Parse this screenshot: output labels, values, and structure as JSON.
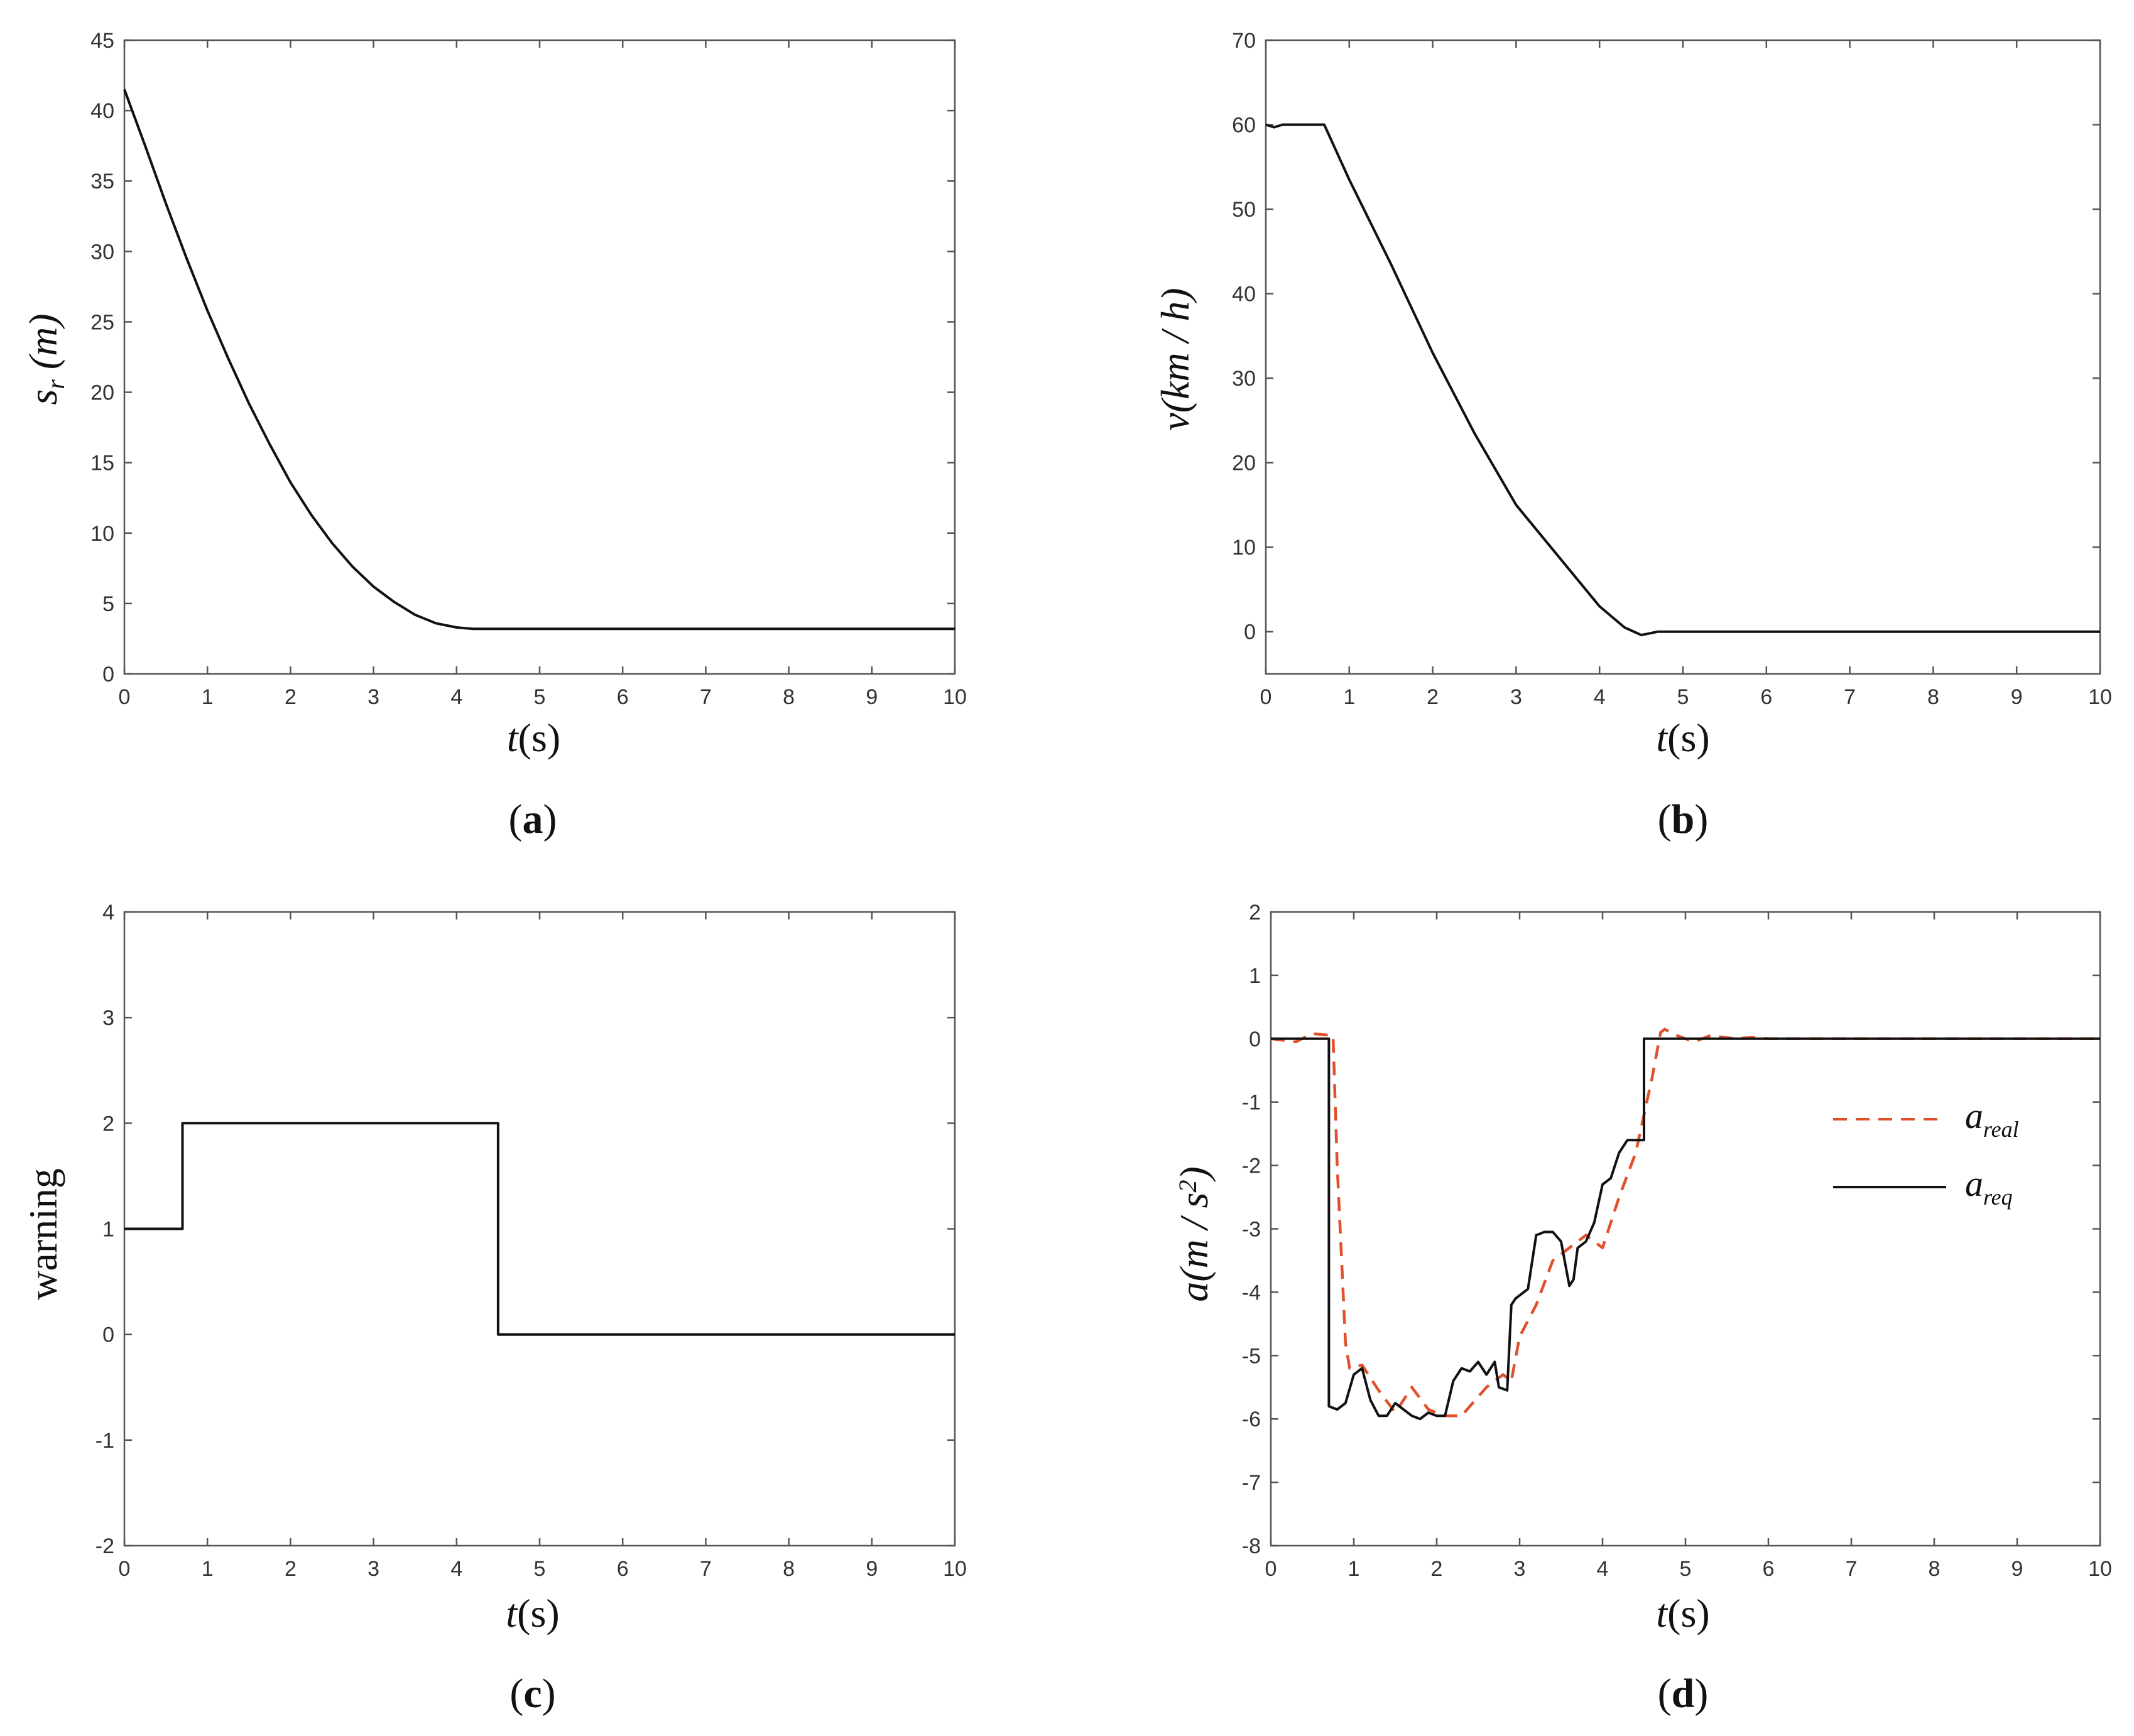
{
  "chart_data": [
    {
      "id": "a",
      "type": "line",
      "caption": "a",
      "xlabel": "t(s)",
      "ylabel": "s_r (m)",
      "xlim": [
        0,
        10
      ],
      "ylim": [
        0,
        45
      ],
      "xticks": [
        "0",
        "1",
        "2",
        "3",
        "4",
        "5",
        "6",
        "7",
        "8",
        "9",
        "10"
      ],
      "yticks": [
        "0",
        "5",
        "10",
        "15",
        "20",
        "25",
        "30",
        "35",
        "40",
        "45"
      ],
      "series": [
        {
          "name": "s_r",
          "color": "#111111",
          "dash": "none",
          "x": [
            0,
            0.25,
            0.5,
            0.75,
            1.0,
            1.25,
            1.5,
            1.75,
            2.0,
            2.25,
            2.5,
            2.75,
            3.0,
            3.25,
            3.5,
            3.75,
            4.0,
            4.2,
            5,
            6,
            7,
            8,
            9,
            10
          ],
          "y": [
            41.5,
            37.5,
            33.4,
            29.5,
            25.8,
            22.4,
            19.2,
            16.3,
            13.6,
            11.3,
            9.3,
            7.6,
            6.2,
            5.1,
            4.2,
            3.6,
            3.3,
            3.2,
            3.2,
            3.2,
            3.2,
            3.2,
            3.2,
            3.2
          ]
        }
      ]
    },
    {
      "id": "b",
      "type": "line",
      "caption": "b",
      "xlabel": "t(s)",
      "ylabel": "v(km / h)",
      "xlim": [
        0,
        10
      ],
      "ylim": [
        -5,
        70
      ],
      "xticks": [
        "0",
        "1",
        "2",
        "3",
        "4",
        "5",
        "6",
        "7",
        "8",
        "9",
        "10"
      ],
      "yticks": [
        "0",
        "10",
        "20",
        "30",
        "40",
        "50",
        "60",
        "70"
      ],
      "series": [
        {
          "name": "v",
          "color": "#111111",
          "dash": "none",
          "x": [
            0,
            0.1,
            0.2,
            0.7,
            1.0,
            1.5,
            2.0,
            2.5,
            3.0,
            3.5,
            4.0,
            4.3,
            4.5,
            4.6,
            4.7,
            5,
            6,
            7,
            8,
            9,
            10
          ],
          "y": [
            60,
            59.7,
            60,
            60,
            53.5,
            43.5,
            33,
            23.5,
            15,
            9,
            3,
            0.5,
            -0.4,
            -0.2,
            0,
            0,
            0,
            0,
            0,
            0,
            0
          ]
        }
      ]
    },
    {
      "id": "c",
      "type": "line",
      "caption": "c",
      "xlabel": "t(s)",
      "ylabel": "warning",
      "xlim": [
        0,
        10
      ],
      "ylim": [
        -2,
        4
      ],
      "xticks": [
        "0",
        "1",
        "2",
        "3",
        "4",
        "5",
        "6",
        "7",
        "8",
        "9",
        "10"
      ],
      "yticks": [
        "-2",
        "-1",
        "0",
        "1",
        "2",
        "3",
        "4"
      ],
      "series": [
        {
          "name": "warning",
          "color": "#111111",
          "dash": "none",
          "x": [
            0,
            0.7,
            0.7,
            4.5,
            4.5,
            10
          ],
          "y": [
            1,
            1,
            2,
            2,
            0,
            0
          ]
        }
      ]
    },
    {
      "id": "d",
      "type": "line",
      "caption": "d",
      "xlabel": "t(s)",
      "ylabel": "a(m / s^2)",
      "xlim": [
        0,
        10
      ],
      "ylim": [
        -8,
        2
      ],
      "xticks": [
        "0",
        "1",
        "2",
        "3",
        "4",
        "5",
        "6",
        "7",
        "8",
        "9",
        "10"
      ],
      "yticks": [
        "-8",
        "-7",
        "-6",
        "-5",
        "-4",
        "-3",
        "-2",
        "-1",
        "0",
        "1",
        "2"
      ],
      "legend": {
        "position": "right",
        "entries": [
          {
            "label": "a",
            "sub": "real"
          },
          {
            "label": "a",
            "sub": "req"
          }
        ]
      },
      "series": [
        {
          "name": "a_real",
          "color": "#E0502A",
          "dash": "22,14",
          "x": [
            0,
            0.3,
            0.5,
            0.75,
            0.8,
            0.9,
            0.95,
            1.1,
            1.3,
            1.5,
            1.7,
            1.9,
            2.1,
            2.3,
            2.5,
            2.6,
            2.8,
            2.9,
            3.0,
            3.2,
            3.4,
            3.6,
            3.8,
            4.0,
            4.2,
            4.4,
            4.5,
            4.6,
            4.7,
            4.75,
            4.9,
            5.1,
            5.3,
            5.6,
            5.8,
            6,
            7,
            8,
            9,
            10
          ],
          "y": [
            0,
            -0.05,
            0.08,
            0.05,
            -2.0,
            -4.8,
            -5.2,
            -5.15,
            -5.55,
            -5.9,
            -5.5,
            -5.85,
            -5.95,
            -5.95,
            -5.65,
            -5.5,
            -5.3,
            -5.4,
            -4.7,
            -4.2,
            -3.5,
            -3.3,
            -3.1,
            -3.3,
            -2.5,
            -1.8,
            -1.2,
            -0.6,
            0.1,
            0.15,
            0.05,
            -0.05,
            0.05,
            0.0,
            0.02,
            0,
            0,
            0,
            0,
            0
          ]
        },
        {
          "name": "a_req",
          "color": "#111111",
          "dash": "none",
          "x": [
            0,
            0.7,
            0.7,
            0.8,
            0.9,
            1.0,
            1.1,
            1.2,
            1.3,
            1.4,
            1.5,
            1.6,
            1.7,
            1.8,
            1.9,
            2.0,
            2.1,
            2.2,
            2.3,
            2.4,
            2.5,
            2.6,
            2.7,
            2.75,
            2.85,
            2.9,
            2.95,
            3.1,
            3.2,
            3.3,
            3.4,
            3.5,
            3.6,
            3.65,
            3.7,
            3.8,
            3.9,
            4.0,
            4.1,
            4.2,
            4.3,
            4.4,
            4.5,
            4.5,
            5,
            6,
            7,
            8,
            9,
            10
          ],
          "y": [
            0,
            0,
            -5.8,
            -5.85,
            -5.75,
            -5.3,
            -5.2,
            -5.7,
            -5.95,
            -5.95,
            -5.75,
            -5.85,
            -5.95,
            -6.0,
            -5.9,
            -5.95,
            -5.95,
            -5.4,
            -5.2,
            -5.25,
            -5.1,
            -5.3,
            -5.1,
            -5.5,
            -5.55,
            -4.2,
            -4.1,
            -3.95,
            -3.1,
            -3.05,
            -3.05,
            -3.2,
            -3.9,
            -3.8,
            -3.3,
            -3.2,
            -2.9,
            -2.3,
            -2.2,
            -1.8,
            -1.6,
            -1.6,
            -1.6,
            0,
            0,
            0,
            0,
            0,
            0,
            0
          ]
        }
      ]
    }
  ]
}
